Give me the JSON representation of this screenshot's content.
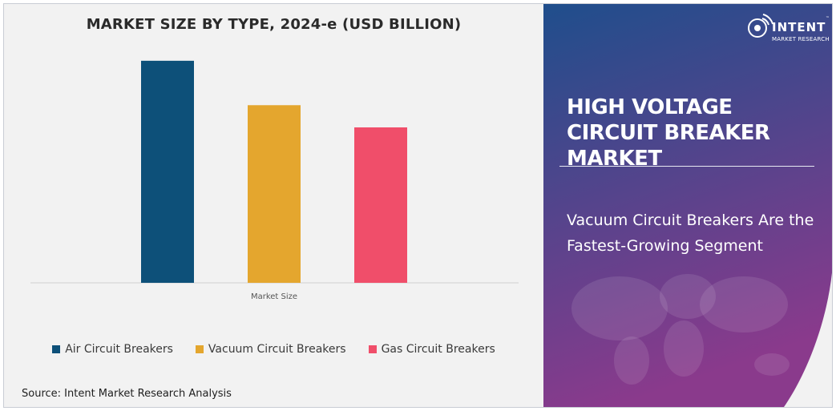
{
  "chart_data": {
    "type": "bar",
    "title": "MARKET SIZE BY TYPE, 2024-e (USD BILLION)",
    "categories": [
      "Market Size"
    ],
    "series": [
      {
        "name": "Air Circuit Breakers",
        "values": [
          10.0
        ],
        "color": "#0d5079"
      },
      {
        "name": "Vacuum Circuit Breakers",
        "values": [
          8.0
        ],
        "color": "#e4a62e"
      },
      {
        "name": "Gas Circuit Breakers",
        "values": [
          7.0
        ],
        "color": "#f04e6a"
      }
    ],
    "ylim": [
      0,
      10.5
    ],
    "grid": false,
    "legend_position": "bottom"
  },
  "source_text": "Source: Intent Market Research Analysis",
  "side_panel": {
    "title": "HIGH VOLTAGE CIRCUIT BREAKER MARKET",
    "subtitle": "Vacuum Circuit Breakers Are the Fastest-Growing Segment",
    "background_top": "#1f4e8c",
    "background_bottom": "#8a3a8c"
  },
  "logo": {
    "word": "INTENT",
    "tagline": "MARKET RESEARCH",
    "trademark": "™",
    "icon": "signal-icon"
  }
}
